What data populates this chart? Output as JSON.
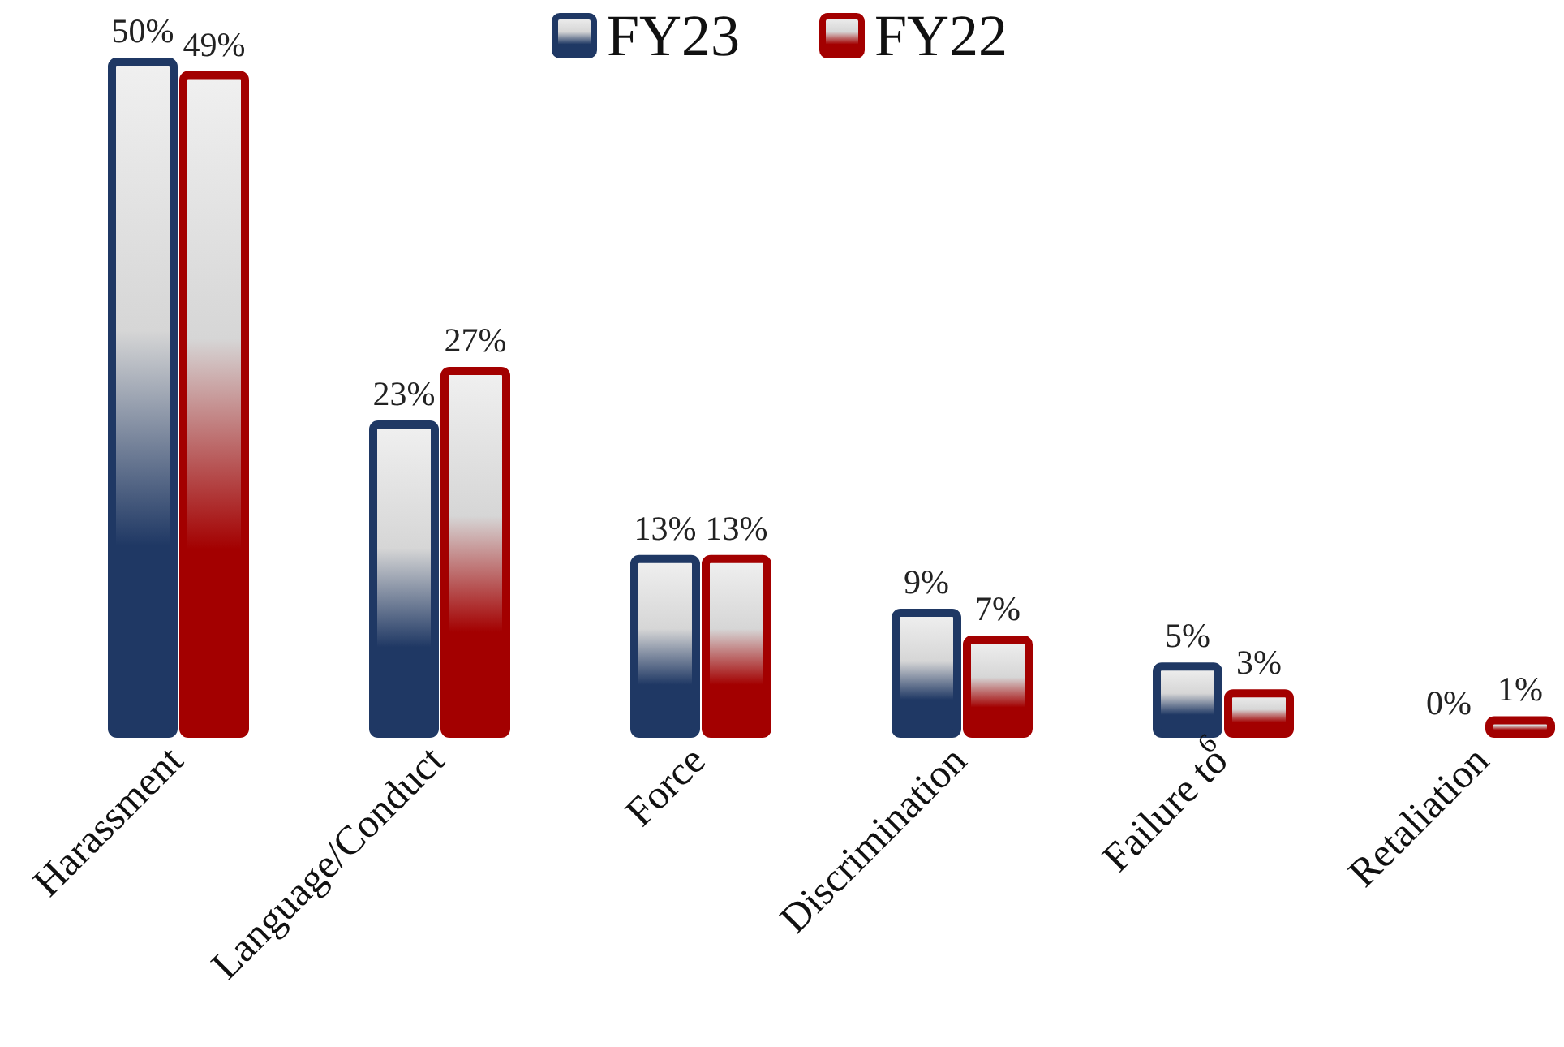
{
  "chart_data": {
    "type": "bar",
    "categories": [
      "Harassment",
      "Language/Conduct",
      "Force",
      "Discrimination",
      "Failure to\n6",
      "Retaliation"
    ],
    "series": [
      {
        "name": "FY23",
        "color": "#1f3864",
        "values": [
          50,
          23,
          13,
          9,
          5,
          0
        ],
        "value_labels": [
          "50%",
          "23%",
          "13%",
          "9%",
          "5%",
          "0%"
        ]
      },
      {
        "name": "FY22",
        "color": "#a30000",
        "values": [
          49,
          27,
          13,
          7,
          3,
          1
        ],
        "value_labels": [
          "49%",
          "27%",
          "13%",
          "7%",
          "3%",
          "1%"
        ]
      }
    ],
    "legend": "top"
  }
}
